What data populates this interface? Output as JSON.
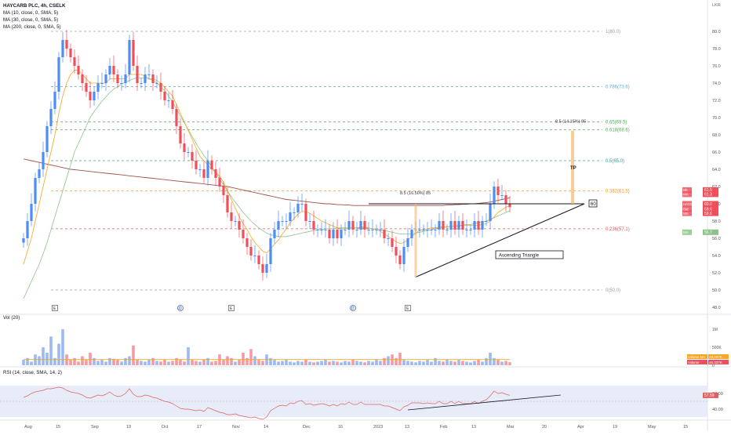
{
  "header": {
    "title": "HAYCARB PLC, 4h, CSELK",
    "ma_lines": [
      "MA (10, close, 0, SMA, 5)",
      "MA (30, close, 0, SMA, 5)",
      "MA (200, close, 0, SMA, 5)"
    ],
    "currency": "LKR"
  },
  "colors": {
    "up": "#4c8df6",
    "down": "#ef4f5a",
    "ma10": "#f5a623",
    "ma30": "#8bc48a",
    "ma200": "#a0524b",
    "rsi": "#e06060",
    "rsi_band": "#e8ebf8",
    "grid": "#f0f3fa",
    "fib": "#999999"
  },
  "chart_data": [
    {
      "type": "candlestick",
      "title": "HAYCARB PLC, 4h, CSELK",
      "ylabel": "LKR",
      "ylim": [
        47,
        82
      ],
      "y_ticks": [
        48.0,
        50.0,
        52.0,
        54.0,
        56.0,
        58.0,
        60.0,
        62.0,
        64.0,
        66.0,
        68.0,
        70.0,
        72.0,
        74.0,
        76.0,
        78.0,
        80.0
      ],
      "x_ticks": [
        {
          "label": "Aug",
          "index": 1
        },
        {
          "label": "15",
          "index": 9
        },
        {
          "label": "Sep",
          "index": 18
        },
        {
          "label": "19",
          "index": 27
        },
        {
          "label": "Oct",
          "index": 36
        },
        {
          "label": "17",
          "index": 45
        },
        {
          "label": "Nov",
          "index": 54
        },
        {
          "label": "14",
          "index": 62
        },
        {
          "label": "Dec",
          "index": 72
        },
        {
          "label": "16",
          "index": 81
        },
        {
          "label": "2023",
          "index": 90
        },
        {
          "label": "13",
          "index": 98
        },
        {
          "label": "Feb",
          "index": 107
        },
        {
          "label": "13",
          "index": 115
        },
        {
          "label": "Mar",
          "index": 124
        },
        {
          "label": "20",
          "index": 133
        },
        {
          "label": "Apr",
          "index": 142
        },
        {
          "label": "19",
          "index": 151
        },
        {
          "label": "May",
          "index": 160
        },
        {
          "label": "15",
          "index": 169
        }
      ],
      "close": [
        56,
        58,
        60,
        63,
        64,
        66,
        69,
        71,
        73,
        77,
        79,
        78,
        77,
        76,
        75,
        74,
        73,
        72,
        73,
        74,
        74,
        75,
        76,
        75,
        74,
        74,
        75,
        79,
        76,
        74,
        74,
        75,
        75,
        74,
        74,
        73,
        72,
        72,
        71,
        69,
        67,
        66,
        66,
        65,
        64,
        64,
        63,
        65,
        64,
        63,
        62,
        61,
        59,
        58,
        58,
        57,
        56,
        55,
        54,
        54,
        53,
        52,
        53,
        56,
        57,
        58,
        58,
        58,
        59,
        59,
        60,
        60,
        58,
        58,
        57,
        57,
        57,
        57,
        56,
        57,
        56,
        57,
        57,
        58,
        57,
        57,
        58,
        57,
        57,
        57,
        57,
        57,
        56,
        56,
        55,
        54,
        53,
        55,
        56,
        57,
        57,
        57,
        57,
        57,
        57,
        57,
        58,
        57,
        57,
        58,
        57,
        58,
        57,
        57,
        57,
        58,
        57,
        58,
        58,
        60,
        62,
        61,
        61,
        60,
        59.6
      ],
      "ma10": [
        53,
        54.5,
        56,
        58,
        60,
        62,
        64,
        66,
        68,
        70.5,
        72.5,
        74,
        75,
        75.5,
        75.5,
        75,
        74.5,
        74,
        74,
        74,
        74,
        74,
        74.5,
        74.5,
        74.5,
        74.5,
        74.5,
        75,
        75,
        75,
        75,
        74.8,
        74.5,
        74.5,
        74.3,
        74,
        73.5,
        73,
        72.5,
        71.5,
        70.5,
        69.5,
        68.5,
        67.5,
        66.5,
        65.5,
        65,
        64.5,
        64,
        63.7,
        63.2,
        62.5,
        61.5,
        60.5,
        59.5,
        58.5,
        57.7,
        57,
        56.2,
        55.5,
        55,
        54.5,
        54.3,
        54.8,
        55.3,
        55.8,
        56.5,
        57.1,
        57.8,
        58.3,
        58.8,
        59.1,
        59.1,
        58.9,
        58.6,
        58.3,
        58,
        57.8,
        57.6,
        57.4,
        57.2,
        57.1,
        57.1,
        57.2,
        57.2,
        57.2,
        57.3,
        57.3,
        57.2,
        57.1,
        57,
        56.8,
        56.5,
        56.2,
        55.9,
        55.6,
        55.4,
        55.5,
        55.8,
        56.2,
        56.6,
        56.9,
        57,
        57.1,
        57.2,
        57.2,
        57.3,
        57.3,
        57.3,
        57.4,
        57.4,
        57.4,
        57.5,
        57.5,
        57.5,
        57.5,
        57.5,
        57.6,
        57.7,
        58,
        58.5,
        59,
        59.3,
        59.6,
        59.8
      ],
      "ma30": [
        49,
        50,
        51,
        52,
        53,
        54.2,
        55.5,
        57,
        58.5,
        60,
        61.5,
        63,
        64.5,
        66,
        67,
        68,
        69,
        70,
        70.7,
        71.3,
        71.9,
        72.4,
        72.9,
        73.3,
        73.6,
        73.9,
        74.1,
        74.3,
        74.5,
        74.6,
        74.6,
        74.6,
        74.5,
        74.3,
        74,
        73.6,
        73.1,
        72.5,
        71.8,
        71,
        70.2,
        69.4,
        68.6,
        67.8,
        67,
        66.3,
        65.6,
        65,
        64.3,
        63.6,
        62.9,
        62.2,
        61.5,
        60.8,
        60.2,
        59.6,
        59,
        58.5,
        58,
        57.6,
        57.2,
        56.9,
        56.6,
        56.4,
        56.3,
        56.2,
        56.2,
        56.2,
        56.3,
        56.4,
        56.5,
        56.6,
        56.7,
        56.8,
        56.9,
        57,
        57,
        57.1,
        57.1,
        57.1,
        57.2,
        57.2,
        57.2,
        57.2,
        57.2,
        57.2,
        57.2,
        57.2,
        57.2,
        57.1,
        57.1,
        57,
        56.9,
        56.8,
        56.7,
        56.6,
        56.5,
        56.5,
        56.5,
        56.5,
        56.6,
        56.7,
        56.8,
        56.9,
        57,
        57.1,
        57.2,
        57.3,
        57.3,
        57.4,
        57.4,
        57.5,
        57.5,
        57.6,
        57.6,
        57.7,
        57.8,
        57.9,
        58,
        58.2,
        58.4,
        58.6,
        58.8,
        59,
        59.2
      ],
      "ma200": [
        65.2,
        65.1,
        65.0,
        64.9,
        64.8,
        64.7,
        64.6,
        64.5,
        64.4,
        64.3,
        64.2,
        64.1,
        64.0,
        63.95,
        63.9,
        63.85,
        63.8,
        63.75,
        63.7,
        63.65,
        63.6,
        63.55,
        63.5,
        63.45,
        63.4,
        63.35,
        63.3,
        63.25,
        63.2,
        63.15,
        63.1,
        63.05,
        63.0,
        62.95,
        62.9,
        62.85,
        62.8,
        62.75,
        62.7,
        62.65,
        62.6,
        62.55,
        62.5,
        62.45,
        62.4,
        62.35,
        62.3,
        62.25,
        62.2,
        62.15,
        62.1,
        62.05,
        62.0,
        61.9,
        61.8,
        61.7,
        61.6,
        61.5,
        61.4,
        61.3,
        61.2,
        61.1,
        61.0,
        60.9,
        60.8,
        60.7,
        60.6,
        60.5,
        60.45,
        60.4,
        60.35,
        60.3,
        60.25,
        60.2,
        60.15,
        60.1,
        60.05,
        60.0,
        60.0,
        59.95,
        59.9,
        59.9,
        59.85,
        59.85,
        59.8,
        59.8,
        59.8,
        59.8,
        59.8,
        59.8,
        59.8,
        59.8,
        59.8,
        59.8,
        59.8,
        59.8,
        59.8,
        59.8,
        59.8,
        59.8,
        59.8,
        59.8,
        59.8,
        59.8,
        59.8,
        59.8,
        59.8,
        59.8,
        59.85,
        59.85,
        59.9,
        59.9,
        59.95,
        59.95,
        60.0,
        60.0,
        60.05,
        60.1,
        60.15,
        60.2,
        60.3,
        60.4,
        60.5,
        60.6,
        60.7
      ],
      "fib_levels": [
        {
          "ratio": "1",
          "price": 80.0,
          "label": "1(80.0)",
          "color": "#9e9e9e"
        },
        {
          "ratio": "0.786",
          "price": 73.6,
          "label": "0.786(73.6)",
          "color": "#5fa8d3"
        },
        {
          "ratio": "0.65",
          "price": 69.5,
          "label": "0.65(69.5)",
          "color": "#4caf50"
        },
        {
          "ratio": "0.618",
          "price": 68.6,
          "label": "0.618(68.6)",
          "color": "#4caf50"
        },
        {
          "ratio": "0.5",
          "price": 65.0,
          "label": "0.5(65.0)",
          "color": "#26a69a"
        },
        {
          "ratio": "0.382",
          "price": 61.5,
          "label": "0.382(61.5)",
          "color": "#ff9800"
        },
        {
          "ratio": "0.236",
          "price": 57.1,
          "label": "0.236(57.1)",
          "color": "#ef5350"
        },
        {
          "ratio": "0",
          "price": 50.0,
          "label": "0(50.0)",
          "color": "#9e9e9e"
        }
      ],
      "annotations": {
        "resistance": {
          "price": 60.0,
          "label": "60"
        },
        "triangle_label": "Ascending Triangle",
        "measure_1": {
          "label": "8.5 (16.50%) 85"
        },
        "measure_2": {
          "label": "8.5 (14.15%) 85"
        },
        "tp_label": "TP"
      },
      "price_tags": [
        {
          "label": "Bh",
          "value": "61.5",
          "price": 61.6,
          "color": "#ef4f5a"
        },
        {
          "label": "MA",
          "value": "61.3",
          "price": 61.1,
          "color": "#ef4f5a"
        },
        {
          "label": "HAYC.N0000",
          "value": "60.0",
          "price": 60.0,
          "color": "#ef4f5a"
        },
        {
          "label": "Bid",
          "value": "59.6",
          "price": 59.4,
          "color": "#ef4f5a"
        },
        {
          "label": "MA",
          "value": "59.6",
          "price": 58.9,
          "color": "#ef4f5a"
        },
        {
          "label": "MA",
          "value": "56.7",
          "price": 56.7,
          "color": "#8bc48a"
        }
      ],
      "event_markers": [
        {
          "type": "E",
          "index": 8
        },
        {
          "type": "D",
          "index": 40
        },
        {
          "type": "E",
          "index": 53
        },
        {
          "type": "D",
          "index": 84
        },
        {
          "type": "E",
          "index": 98
        }
      ]
    },
    {
      "type": "bar",
      "title": "Vol (20)",
      "ylim": [
        0,
        1.2
      ],
      "y_ticks": [
        {
          "label": "1M",
          "value": 1.0
        },
        {
          "label": "500K",
          "value": 0.5
        },
        {
          "label": "0",
          "value": 0
        }
      ],
      "values": [
        0.15,
        0.2,
        0.1,
        0.3,
        0.25,
        0.5,
        0.35,
        0.8,
        0.2,
        0.6,
        1.0,
        0.3,
        0.15,
        0.2,
        0.1,
        0.25,
        0.15,
        0.35,
        0.2,
        0.12,
        0.15,
        0.1,
        0.2,
        0.18,
        0.15,
        0.1,
        0.2,
        0.25,
        0.55,
        0.15,
        0.12,
        0.1,
        0.15,
        0.2,
        0.12,
        0.1,
        0.15,
        0.1,
        0.12,
        0.2,
        0.15,
        0.1,
        0.5,
        0.15,
        0.12,
        0.1,
        0.15,
        0.2,
        0.1,
        0.12,
        0.3,
        0.15,
        0.25,
        0.2,
        0.1,
        0.15,
        0.35,
        0.2,
        0.45,
        0.25,
        0.15,
        0.12,
        0.3,
        0.2,
        0.15,
        0.1,
        0.12,
        0.15,
        0.1,
        0.08,
        0.12,
        0.1,
        0.15,
        0.1,
        0.08,
        0.1,
        0.12,
        0.15,
        0.1,
        0.12,
        0.1,
        0.08,
        0.12,
        0.1,
        0.15,
        0.12,
        0.1,
        0.08,
        0.12,
        0.1,
        0.15,
        0.12,
        0.2,
        0.25,
        0.3,
        0.2,
        0.35,
        0.15,
        0.12,
        0.1,
        0.08,
        0.12,
        0.1,
        0.15,
        0.1,
        0.2,
        0.12,
        0.1,
        0.15,
        0.12,
        0.1,
        0.15,
        0.12,
        0.1,
        0.08,
        0.12,
        0.15,
        0.1,
        0.2,
        0.35,
        0.2,
        0.15,
        0.1,
        0.12,
        0.08
      ],
      "ma20": 0.16,
      "tags": [
        {
          "label": "Volume MA",
          "value": "46.467K",
          "color": "#f5a623"
        },
        {
          "label": "Volume",
          "value": "46.337K",
          "color": "#ef4f5a"
        }
      ]
    },
    {
      "type": "line",
      "title": "RSI (14, close, SMA, 14, 2)",
      "ylim": [
        25,
        75
      ],
      "y_ticks": [
        60.0,
        40.0
      ],
      "band": [
        70,
        30
      ],
      "values": [
        55,
        57,
        60,
        62,
        63,
        64,
        66,
        66,
        67,
        68,
        67,
        64,
        62,
        61,
        60,
        58,
        55,
        54,
        56,
        58,
        57,
        59,
        62,
        58,
        56,
        57,
        60,
        66,
        59,
        56,
        56,
        58,
        57,
        55,
        54,
        52,
        50,
        49,
        47,
        44,
        41,
        40,
        40,
        39,
        38,
        39,
        37,
        42,
        40,
        38,
        36,
        35,
        33,
        33,
        34,
        32,
        31,
        30,
        29,
        30,
        28,
        27,
        30,
        38,
        41,
        44,
        45,
        44,
        48,
        47,
        50,
        51,
        46,
        47,
        45,
        46,
        47,
        46,
        44,
        46,
        44,
        47,
        46,
        49,
        46,
        46,
        49,
        46,
        46,
        46,
        46,
        46,
        44,
        44,
        42,
        40,
        38,
        43,
        45,
        48,
        48,
        48,
        47,
        48,
        47,
        47,
        50,
        47,
        47,
        50,
        47,
        50,
        47,
        47,
        47,
        50,
        47,
        50,
        52,
        57,
        63,
        60,
        61,
        59,
        57.59
      ],
      "value_label": "57.59",
      "trendline": true
    }
  ]
}
